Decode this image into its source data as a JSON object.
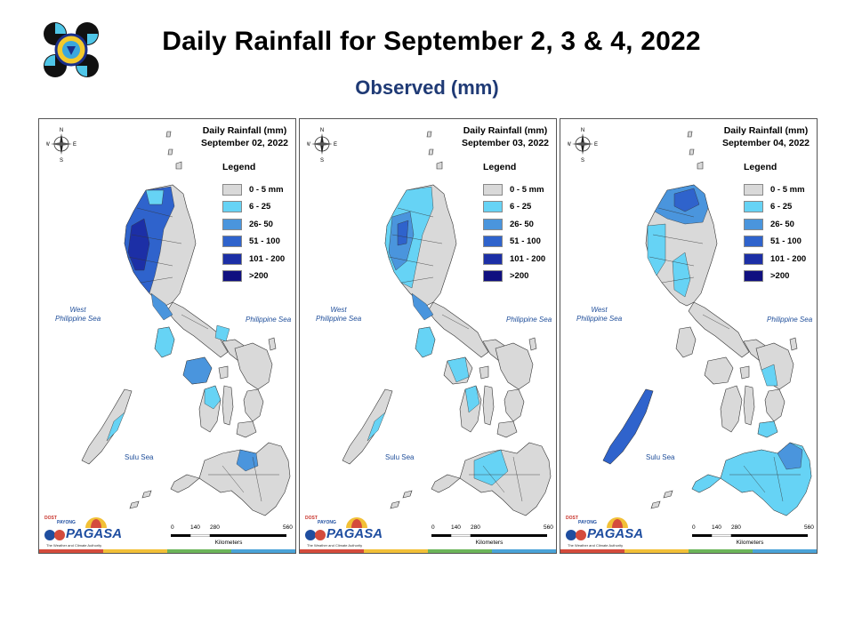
{
  "header": {
    "title": "Daily Rainfall for September 2, 3 & 4, 2022",
    "subtitle": "Observed (mm)"
  },
  "legend": {
    "title": "Legend",
    "items": [
      {
        "label": "0 - 5 mm",
        "color": "#d9d9d9"
      },
      {
        "label": "6 - 25",
        "color": "#66d3f5"
      },
      {
        "label": "26- 50",
        "color": "#4a95dd"
      },
      {
        "label": "51 - 100",
        "color": "#2f63cc"
      },
      {
        "label": "101 - 200",
        "color": "#1c2fa6"
      },
      {
        "label": ">200",
        "color": "#101080"
      }
    ]
  },
  "panels": [
    {
      "title": "Daily Rainfall (mm)",
      "date": "September 02, 2022"
    },
    {
      "title": "Daily Rainfall (mm)",
      "date": "September 03, 2022"
    },
    {
      "title": "Daily Rainfall (mm)",
      "date": "September 04, 2022"
    }
  ],
  "seas": {
    "west": "West\nPhilippine Sea",
    "east": "Philippine Sea",
    "sulu": "Sulu Sea"
  },
  "compass": {
    "n": "N",
    "s": "S",
    "e": "E",
    "w": "W"
  },
  "scale": {
    "ticks": [
      "0",
      "140",
      "280",
      "560"
    ],
    "units": "Kilometers"
  },
  "branding": {
    "word": "PAGASA",
    "dost": "DOST",
    "payong": "PAYONG",
    "tagline": "The Weather and Climate Authority"
  },
  "strip_colors": [
    "#d44b3c",
    "#f2c037",
    "#6cb55a",
    "#4aa3d8"
  ],
  "icons": {
    "logo": "dost-logo-icon",
    "compass": "compass-rose-icon",
    "pagasa": "pagasa-umbrella-icon"
  }
}
